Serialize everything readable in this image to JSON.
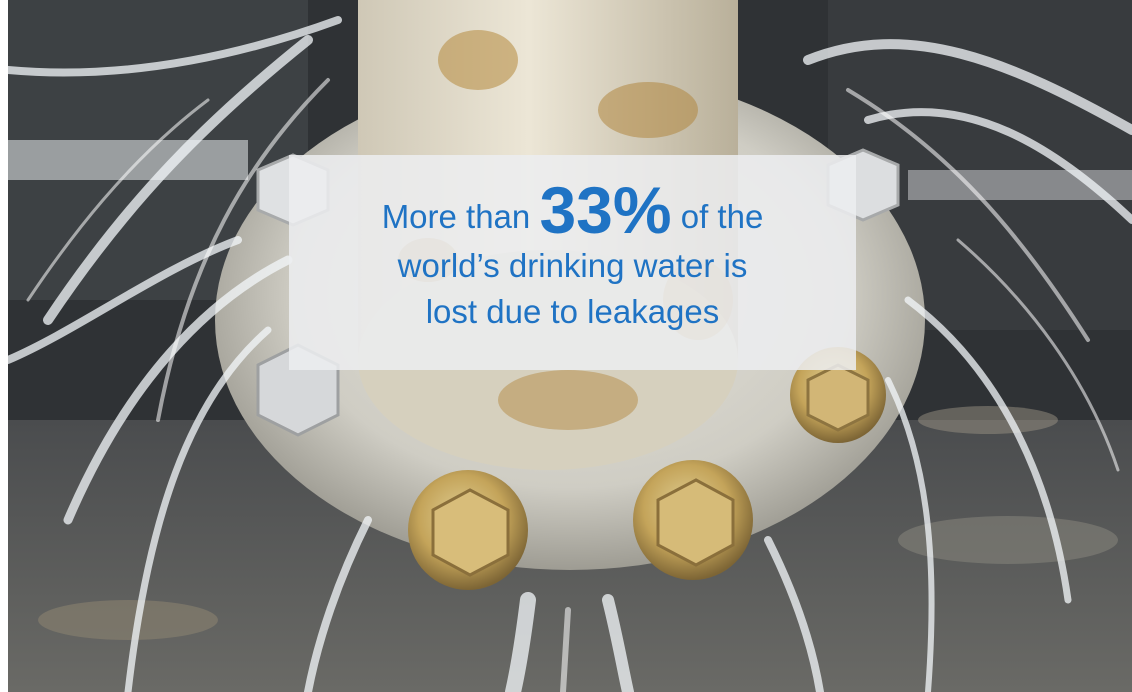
{
  "caption": {
    "prefix": "More than",
    "highlight": "33%",
    "suffix": "of the",
    "line2": "world’s drinking water is",
    "line3": "lost due to leakages"
  },
  "colors": {
    "text": "#1f73c4",
    "panel": "#eceef0"
  }
}
